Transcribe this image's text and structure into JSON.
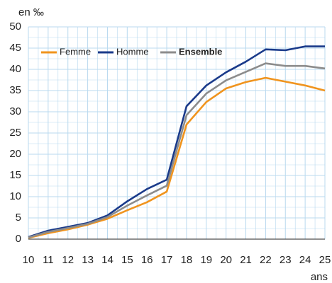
{
  "chart_data": {
    "type": "line",
    "y_label": "en ‰",
    "x_label": "ans",
    "x": [
      10,
      11,
      12,
      13,
      14,
      15,
      16,
      17,
      18,
      19,
      20,
      21,
      22,
      23,
      24,
      25
    ],
    "series": [
      {
        "name": "Femme",
        "color": "#f0941e",
        "values": [
          0.3,
          1.4,
          2.3,
          3.4,
          4.8,
          6.8,
          8.7,
          11.2,
          27,
          32.3,
          35.5,
          37,
          38,
          37.1,
          36.2,
          35
        ]
      },
      {
        "name": "Homme",
        "color": "#1a3a8a",
        "values": [
          0.5,
          2,
          2.9,
          3.8,
          5.6,
          8.9,
          11.8,
          14,
          31.3,
          36.2,
          39.3,
          41.8,
          44.7,
          44.5,
          45.4,
          45.4
        ]
      },
      {
        "name": "Ensemble",
        "color": "#8c8c8c",
        "values": [
          0.4,
          1.7,
          2.6,
          3.6,
          5.2,
          7.9,
          10.3,
          12.6,
          29.2,
          34.3,
          37.4,
          39.4,
          41.4,
          40.8,
          40.8,
          40.2
        ]
      }
    ],
    "xlim": [
      10,
      25
    ],
    "xticks": [
      10,
      11,
      12,
      13,
      14,
      15,
      16,
      17,
      18,
      19,
      20,
      21,
      22,
      23,
      24,
      25
    ],
    "ylim": [
      0,
      50
    ],
    "yticks": [
      0,
      5,
      10,
      15,
      20,
      25,
      30,
      35,
      40,
      45,
      50
    ],
    "grid": true,
    "legend": "top-left"
  }
}
